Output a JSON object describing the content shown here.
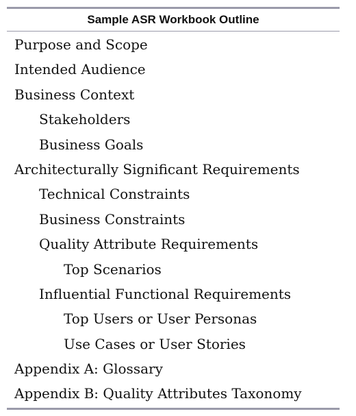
{
  "table": {
    "title": "Sample ASR Workbook Outline",
    "rows": [
      {
        "label": "Purpose and Scope",
        "level": 0
      },
      {
        "label": "Intended Audience",
        "level": 0
      },
      {
        "label": "Business Context",
        "level": 0
      },
      {
        "label": "Stakeholders",
        "level": 1
      },
      {
        "label": "Business Goals",
        "level": 1
      },
      {
        "label": "Architecturally Significant Requirements",
        "level": 0
      },
      {
        "label": "Technical Constraints",
        "level": 1
      },
      {
        "label": "Business Constraints",
        "level": 1
      },
      {
        "label": "Quality Attribute Requirements",
        "level": 1
      },
      {
        "label": "Top Scenarios",
        "level": 2
      },
      {
        "label": "Influential Functional Requirements",
        "level": 1
      },
      {
        "label": "Top Users or User Personas",
        "level": 2
      },
      {
        "label": "Use Cases or User Stories",
        "level": 2
      },
      {
        "label": "Appendix A: Glossary",
        "level": 0
      },
      {
        "label": "Appendix B: Quality Attributes Taxonomy",
        "level": 0
      }
    ]
  }
}
